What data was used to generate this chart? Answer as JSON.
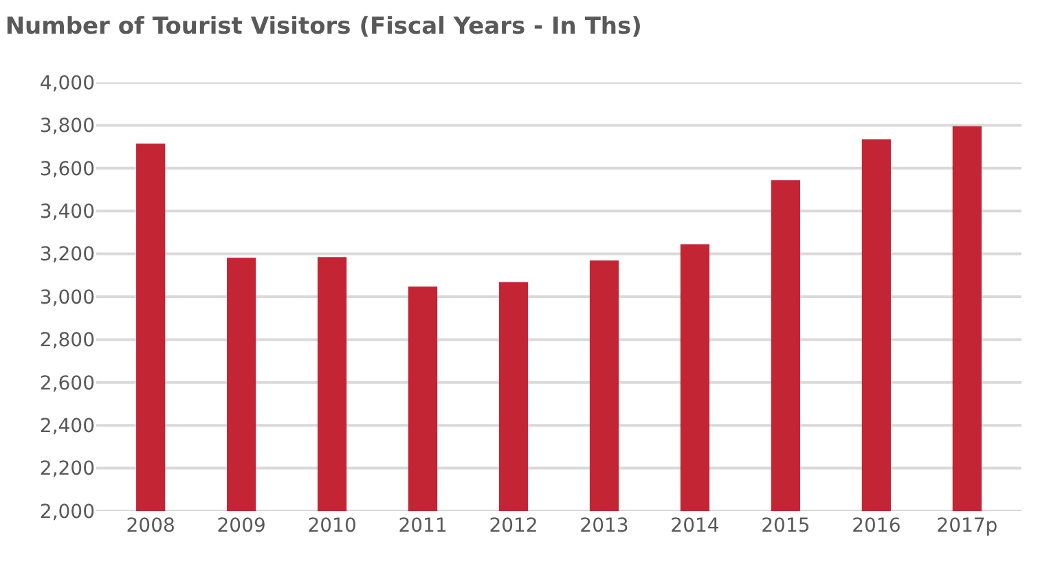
{
  "chart_data": {
    "type": "bar",
    "title": "Number of Tourist Visitors (Fiscal Years - In Ths)",
    "categories": [
      "2008",
      "2009",
      "2010",
      "2011",
      "2012",
      "2013",
      "2014",
      "2015",
      "2016",
      "2017p"
    ],
    "values": [
      3715,
      3182,
      3185,
      3047,
      3068,
      3169,
      3245,
      3544,
      3735,
      3796
    ],
    "color": "#c42535",
    "ylim": [
      2000,
      4000
    ],
    "yticks": [
      {
        "value": 2000,
        "label": "2,000"
      },
      {
        "value": 2200,
        "label": "2,200"
      },
      {
        "value": 2400,
        "label": "2,400"
      },
      {
        "value": 2600,
        "label": "2,600"
      },
      {
        "value": 2800,
        "label": "2,800"
      },
      {
        "value": 3000,
        "label": "3,000"
      },
      {
        "value": 3200,
        "label": "3,200"
      },
      {
        "value": 3400,
        "label": "3,400"
      },
      {
        "value": 3600,
        "label": "3,600"
      },
      {
        "value": 3800,
        "label": "3,800"
      },
      {
        "value": 4000,
        "label": "4,000"
      }
    ],
    "grid": "y"
  }
}
